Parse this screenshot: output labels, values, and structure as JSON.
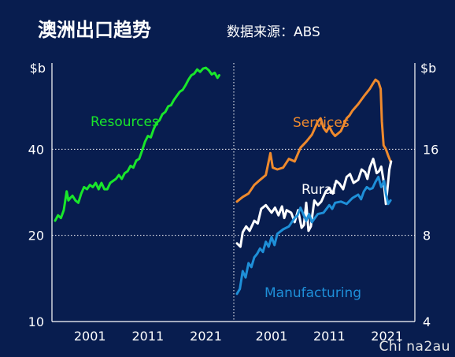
{
  "header": {
    "title": "澳洲出口趋势",
    "source": "数据来源：ABS"
  },
  "watermark": "Chi na2au",
  "colors": {
    "background": "#081d4f",
    "resources": "#19e62b",
    "services": "#ef8a2d",
    "rural": "#ffffff",
    "manufacturing": "#1e8fd8"
  },
  "chart_data": [
    {
      "type": "line",
      "panel": "left",
      "unit_label": "$b",
      "y_scale": "log",
      "ylim": [
        10,
        80
      ],
      "yticks": [
        10,
        20,
        40
      ],
      "xlim": [
        1995,
        2025
      ],
      "xticks": [
        2001,
        2011,
        2021
      ],
      "grid": "horizontal dotted",
      "series": [
        {
          "name": "Resources",
          "color": "#19e62b",
          "x": [
            1995.0,
            1995.5,
            1996.0,
            1996.5,
            1997.0,
            1997.3,
            1997.6,
            1998.0,
            1998.5,
            1999.0,
            1999.5,
            2000.0,
            2000.5,
            2001.0,
            2001.5,
            2002.0,
            2002.5,
            2003.0,
            2003.5,
            2004.0,
            2004.5,
            2005.0,
            2005.5,
            2006.0,
            2006.5,
            2007.0,
            2007.5,
            2008.0,
            2008.5,
            2009.0,
            2009.5,
            2010.0,
            2010.5,
            2011.0,
            2011.5,
            2012.0,
            2012.5,
            2013.0,
            2013.5,
            2014.0,
            2014.5,
            2015.0,
            2015.5,
            2016.0,
            2016.5,
            2017.0,
            2017.5,
            2018.0,
            2018.5,
            2019.0,
            2019.5,
            2020.0,
            2020.5,
            2021.0,
            2021.5,
            2022.0,
            2022.5,
            2023.0,
            2023.3
          ],
          "values": [
            22.5,
            23.5,
            23.0,
            24.5,
            28.5,
            26.5,
            27.0,
            27.5,
            26.5,
            26.0,
            28.0,
            29.5,
            29.0,
            30.0,
            29.5,
            30.5,
            29.0,
            30.5,
            29.0,
            29.0,
            30.5,
            31.0,
            31.5,
            32.5,
            31.5,
            33.0,
            33.5,
            35.0,
            34.5,
            36.5,
            37.0,
            39.5,
            42.5,
            44.5,
            44.0,
            47.0,
            49.5,
            50.5,
            53.0,
            54.0,
            56.5,
            57.0,
            59.5,
            61.5,
            63.5,
            64.5,
            67.0,
            70.0,
            72.5,
            73.5,
            76.0,
            74.5,
            76.5,
            77.0,
            75.5,
            73.0,
            74.0,
            71.0,
            72.5
          ]
        }
      ]
    },
    {
      "type": "line",
      "panel": "right",
      "unit_label": "$b",
      "y_scale": "log",
      "ylim": [
        4,
        32
      ],
      "yticks": [
        4,
        8,
        16
      ],
      "xlim": [
        1995,
        2025
      ],
      "xticks": [
        2001,
        2011,
        2021
      ],
      "grid": "horizontal dotted",
      "series": [
        {
          "name": "Services",
          "color": "#ef8a2d",
          "x": [
            1995.0,
            1996.0,
            1997.0,
            1998.0,
            1999.0,
            2000.0,
            2000.8,
            2001.2,
            2002.0,
            2003.0,
            2004.0,
            2005.0,
            2006.0,
            2007.0,
            2008.0,
            2009.0,
            2009.5,
            2010.0,
            2010.5,
            2011.0,
            2011.5,
            2012.0,
            2013.0,
            2014.0,
            2014.5,
            2015.0,
            2016.0,
            2017.0,
            2018.0,
            2018.5,
            2019.0,
            2019.5,
            2019.9,
            2020.1,
            2020.4,
            2020.8,
            2021.2,
            2021.6
          ],
          "values": [
            10.5,
            10.9,
            11.2,
            12.0,
            12.5,
            13.0,
            15.5,
            13.8,
            13.6,
            13.8,
            14.8,
            14.5,
            16.2,
            17.0,
            18.0,
            20.0,
            20.5,
            19.0,
            18.4,
            19.2,
            18.3,
            17.8,
            18.5,
            20.5,
            21.0,
            21.8,
            23.0,
            24.5,
            26.0,
            27.0,
            28.0,
            27.5,
            26.0,
            20.0,
            16.5,
            16.0,
            15.2,
            14.5
          ]
        },
        {
          "name": "Rural",
          "color": "#ffffff",
          "x": [
            1995.0,
            1995.6,
            1996.0,
            1996.6,
            1997.2,
            1998.0,
            1998.6,
            1999.2,
            2000.0,
            2001.0,
            2001.6,
            2002.2,
            2002.8,
            2003.2,
            2003.6,
            2004.4,
            2005.0,
            2005.6,
            2006.2,
            2006.6,
            2007.0,
            2007.4,
            2007.8,
            2008.4,
            2009.0,
            2009.6,
            2010.4,
            2011.0,
            2011.6,
            2012.2,
            2012.8,
            2013.4,
            2014.0,
            2014.6,
            2015.2,
            2016.0,
            2016.6,
            2017.2,
            2017.6,
            2018.0,
            2018.6,
            2019.2,
            2019.6,
            2020.0,
            2020.4,
            2020.8,
            2021.1,
            2021.4,
            2021.7
          ],
          "values": [
            7.5,
            7.3,
            8.2,
            8.6,
            8.3,
            9.0,
            8.8,
            9.9,
            10.2,
            9.6,
            10.0,
            9.4,
            10.1,
            9.2,
            9.8,
            9.6,
            8.9,
            9.8,
            8.5,
            8.7,
            10.4,
            8.3,
            8.6,
            10.6,
            10.2,
            10.5,
            11.4,
            11.7,
            11.2,
            12.4,
            12.1,
            11.6,
            12.8,
            13.1,
            12.2,
            12.5,
            13.6,
            13.3,
            12.6,
            13.8,
            14.8,
            13.2,
            13.4,
            13.9,
            12.4,
            10.3,
            11.8,
            13.6,
            14.5
          ]
        },
        {
          "name": "Manufacturing",
          "color": "#1e8fd8",
          "x": [
            1995.0,
            1995.5,
            1996.0,
            1996.5,
            1997.0,
            1997.5,
            1998.0,
            1998.5,
            1999.0,
            1999.5,
            2000.0,
            2000.5,
            2001.0,
            2001.5,
            2002.0,
            2003.0,
            2004.0,
            2005.0,
            2005.5,
            2006.0,
            2006.5,
            2007.0,
            2007.5,
            2008.0,
            2008.5,
            2009.0,
            2010.0,
            2011.0,
            2011.5,
            2012.0,
            2013.0,
            2014.0,
            2015.0,
            2016.0,
            2016.5,
            2017.0,
            2017.5,
            2018.0,
            2018.5,
            2019.0,
            2019.5,
            2020.0,
            2020.5,
            2020.8,
            2021.2,
            2021.6
          ],
          "values": [
            5.0,
            5.2,
            6.0,
            5.7,
            6.4,
            6.2,
            6.7,
            6.9,
            7.2,
            7.0,
            7.6,
            7.3,
            7.9,
            7.4,
            8.1,
            8.4,
            8.6,
            9.2,
            9.4,
            10.0,
            9.5,
            9.0,
            9.5,
            8.9,
            9.2,
            9.5,
            9.6,
            10.2,
            9.9,
            10.4,
            10.5,
            10.3,
            10.8,
            11.1,
            10.7,
            11.4,
            11.8,
            11.6,
            11.7,
            12.3,
            12.8,
            11.8,
            12.4,
            11.2,
            10.3,
            10.6
          ]
        }
      ]
    }
  ]
}
